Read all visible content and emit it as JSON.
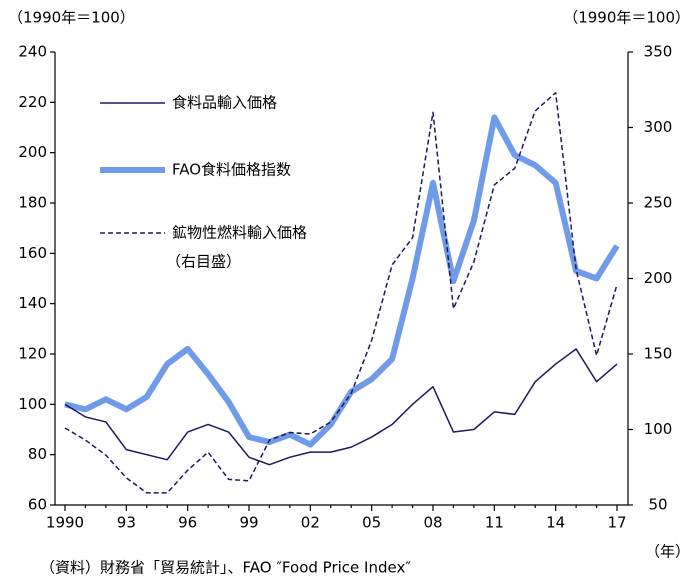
{
  "chart_data": {
    "type": "line",
    "y_label": "（1990年＝100）",
    "y2_label": "（1990年＝100）",
    "x_label": "（年）",
    "source": "（資料）財務省「貿易統計」、FAO ″Food Price Index″",
    "categories": [
      "1990",
      null,
      null,
      "93",
      null,
      null,
      "96",
      null,
      null,
      "99",
      null,
      null,
      "02",
      null,
      null,
      "05",
      null,
      null,
      "08",
      null,
      null,
      "11",
      null,
      null,
      "14",
      null,
      null,
      "17"
    ],
    "series": [
      {
        "name": "食料品輸入価格",
        "color": "#1a1a5e",
        "width": 1.5,
        "dash": false,
        "values": [
          100,
          95,
          93,
          82,
          80,
          78,
          89,
          92,
          89,
          79,
          76,
          79,
          81,
          81,
          83,
          87,
          92,
          100,
          107,
          89,
          90,
          97,
          96,
          109,
          116,
          122,
          109,
          116
        ]
      },
      {
        "name": "FAO食料価格指数",
        "color": "#6f9be8",
        "width": 6,
        "dash": false,
        "values": [
          100,
          98,
          102,
          98,
          103,
          116,
          122,
          112,
          101,
          87,
          85,
          88,
          84,
          92,
          105,
          110,
          118,
          150,
          188,
          149,
          173,
          214,
          199,
          195,
          188,
          153,
          150,
          163
        ]
      },
      {
        "name": "鉱物性燃料輸入価格",
        "legend_note": "（右目盛）",
        "color": "#1a1a5e",
        "width": 1.5,
        "dash": true,
        "axis": "y2",
        "values": [
          101,
          93,
          83,
          68,
          58,
          58,
          73,
          85,
          67,
          66,
          93,
          98,
          97,
          105,
          124,
          159,
          209,
          227,
          310,
          180,
          211,
          262,
          273,
          311,
          323,
          206,
          149,
          196
        ]
      }
    ],
    "ylim": [
      60,
      240
    ],
    "yticks": [
      60,
      80,
      100,
      120,
      140,
      160,
      180,
      200,
      220,
      240
    ],
    "y2lim": [
      50,
      350
    ],
    "y2ticks": [
      50,
      100,
      150,
      200,
      250,
      300,
      350
    ]
  }
}
